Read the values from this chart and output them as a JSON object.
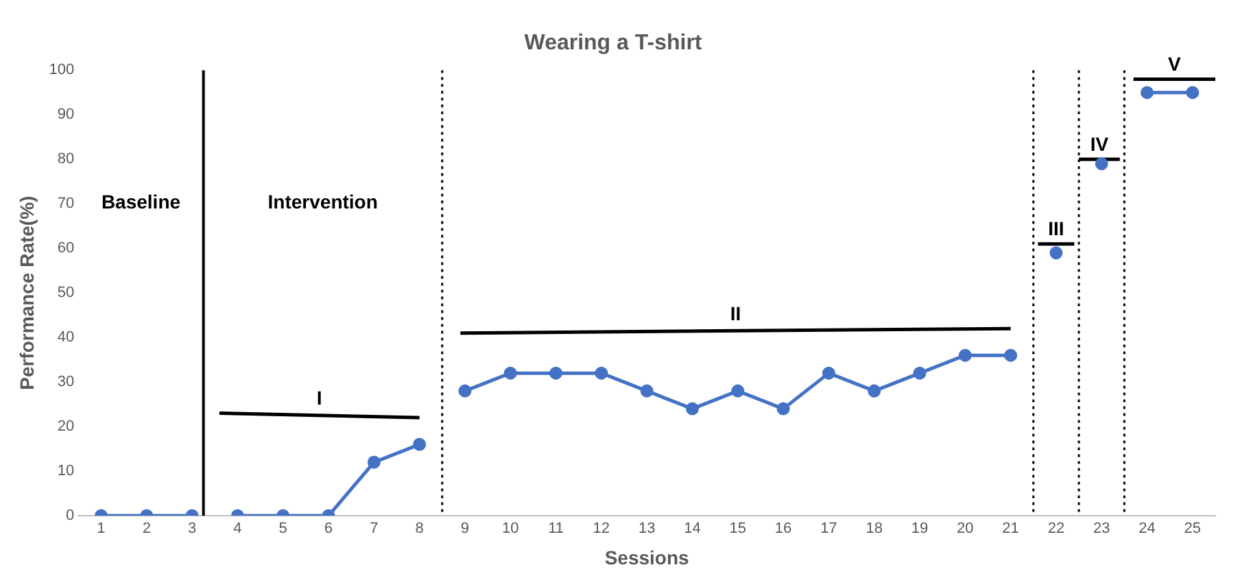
{
  "chart_data": {
    "type": "line",
    "title": "Wearing a T-shirt",
    "xlabel": "Sessions",
    "ylabel": "Performance Rate(%)",
    "xlim": [
      0.5,
      25.5
    ],
    "xticks": [
      1,
      2,
      3,
      4,
      5,
      6,
      7,
      8,
      9,
      10,
      11,
      12,
      13,
      14,
      15,
      16,
      17,
      18,
      19,
      20,
      21,
      22,
      23,
      24,
      25
    ],
    "ylim": [
      0,
      100
    ],
    "yticks": [
      0,
      10,
      20,
      30,
      40,
      50,
      60,
      70,
      80,
      90,
      100
    ],
    "grid": false,
    "legend": false,
    "marker": "circle",
    "line_style": "solid",
    "series": [
      {
        "color": "#4472c4",
        "x": [
          1,
          2,
          3
        ],
        "values": [
          0,
          0,
          0
        ]
      },
      {
        "color": "#4472c4",
        "x": [
          4,
          5,
          6,
          7,
          8
        ],
        "values": [
          0,
          0,
          0,
          12,
          16
        ]
      },
      {
        "color": "#4472c4",
        "x": [
          9,
          10,
          11,
          12,
          13,
          14,
          15,
          16,
          17,
          18,
          19,
          20,
          21
        ],
        "values": [
          28,
          32,
          32,
          32,
          28,
          24,
          28,
          24,
          32,
          28,
          32,
          36,
          36
        ]
      },
      {
        "color": "#4472c4",
        "x": [
          22
        ],
        "values": [
          59
        ]
      },
      {
        "color": "#4472c4",
        "x": [
          23
        ],
        "values": [
          79
        ]
      },
      {
        "color": "#4472c4",
        "x": [
          24,
          25
        ],
        "values": [
          95,
          95
        ]
      },
      {
        "name": "I",
        "color": "#000000",
        "marker": "none",
        "x": [
          3.6,
          8
        ],
        "values": [
          23,
          22
        ]
      },
      {
        "name": "II",
        "color": "#000000",
        "marker": "none",
        "x": [
          8.9,
          21
        ],
        "values": [
          41,
          42
        ]
      },
      {
        "name": "III",
        "color": "#000000",
        "marker": "none",
        "x": [
          21.6,
          22.4
        ],
        "values": [
          61,
          61
        ]
      },
      {
        "name": "IV",
        "color": "#000000",
        "marker": "none",
        "x": [
          22.5,
          23.4
        ],
        "values": [
          80,
          80
        ]
      },
      {
        "name": "V",
        "color": "#000000",
        "marker": "none",
        "x": [
          23.7,
          25.5
        ],
        "values": [
          98,
          98
        ]
      }
    ],
    "ref_lines": [
      {
        "axis": "x",
        "value": 3.25,
        "color": "#000000",
        "line_style": "solid"
      },
      {
        "axis": "x",
        "value": 8.5,
        "color": "#000000",
        "line_style": "dotted"
      },
      {
        "axis": "x",
        "value": 21.5,
        "color": "#000000",
        "line_style": "dotted"
      },
      {
        "axis": "x",
        "value": 22.5,
        "color": "#000000",
        "line_style": "dotted"
      },
      {
        "axis": "x",
        "value": 23.5,
        "color": "#000000",
        "line_style": "dotted"
      }
    ],
    "annotations": [
      "Baseline",
      "Intervention"
    ]
  }
}
